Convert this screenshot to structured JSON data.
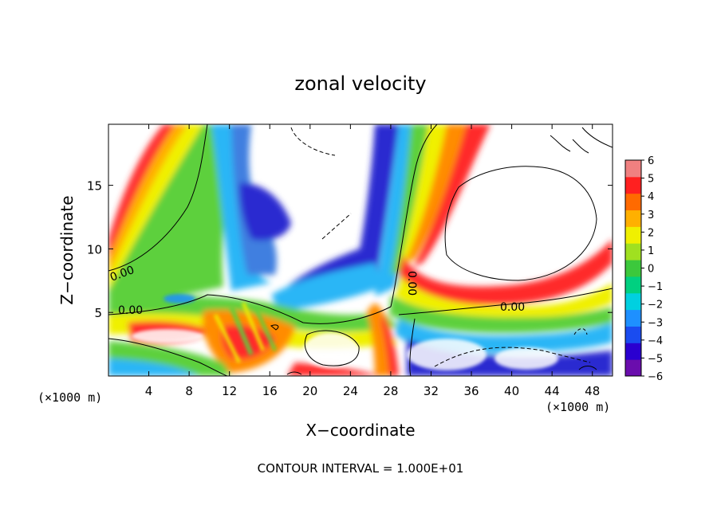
{
  "chart_data": {
    "type": "heatmap",
    "title": "zonal velocity",
    "xlabel": "X−coordinate",
    "ylabel": "Z−coordinate",
    "x_unit_label": "(×1000 m)",
    "x_unit_label_right": "(×1000 m)",
    "footer": "CONTOUR INTERVAL = 1.000E+01",
    "xlim": [
      0,
      50
    ],
    "ylim": [
      0,
      19.8
    ],
    "x_ticks": [
      4,
      8,
      12,
      16,
      20,
      24,
      28,
      32,
      36,
      40,
      44,
      48
    ],
    "x_tick_labels": [
      "4",
      "8",
      "12",
      "16",
      "20",
      "24",
      "28",
      "32",
      "36",
      "40",
      "44",
      "48"
    ],
    "y_ticks": [
      5,
      10,
      15
    ],
    "y_tick_labels": [
      "5",
      "10",
      "15"
    ],
    "colorbar": {
      "range": [
        -6,
        6
      ],
      "ticks": [
        6,
        5,
        4,
        3,
        2,
        1,
        0,
        -1,
        -2,
        -3,
        -4,
        -5,
        -6
      ],
      "tick_labels": [
        "6",
        "5",
        "4",
        "3",
        "2",
        "1",
        "0",
        "−1",
        "−2",
        "−3",
        "−4",
        "−5",
        "−6"
      ],
      "colors": [
        "#6a0dad",
        "#2a00d0",
        "#1a4cf0",
        "#1e90ff",
        "#00d0e0",
        "#00d080",
        "#3cc83c",
        "#a0e020",
        "#f0f000",
        "#ffb000",
        "#ff6a00",
        "#ff2020",
        "#f08080"
      ]
    },
    "contour_labels": [
      {
        "text": "0.00",
        "x": 2.3,
        "y": 8.2
      },
      {
        "text": "0.00",
        "x": 2.7,
        "y": 5.3
      },
      {
        "text": "0.00",
        "x": 29.5,
        "y": 7.1
      },
      {
        "text": "0.00",
        "x": 40.0,
        "y": 5.6
      }
    ],
    "field_features": [
      {
        "name": "white_background",
        "value": 0
      },
      {
        "name": "left_ridge_x_at_top",
        "value": 6.0
      },
      {
        "name": "central_plume_x",
        "value": 29.0
      },
      {
        "name": "shear_layer_z",
        "value": 4.8
      },
      {
        "name": "right_upper_white_region_x",
        "value": [
          32,
          48
        ]
      },
      {
        "name": "lower_center_white_region_x",
        "value": [
          19,
          27
        ]
      }
    ]
  }
}
